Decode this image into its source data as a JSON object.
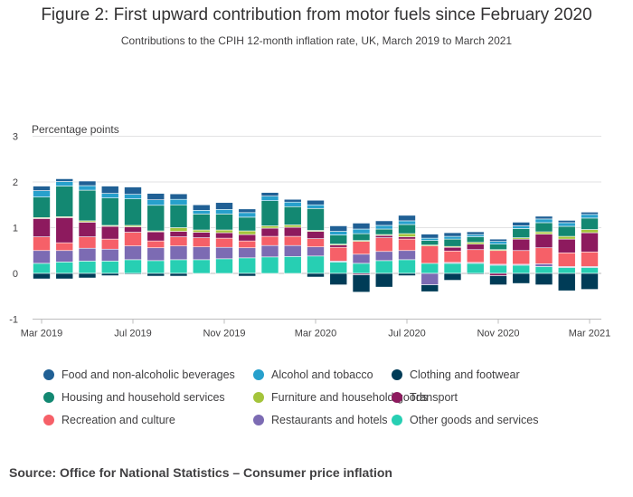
{
  "title": "Figure 2: First upward contribution from motor fuels since February 2020",
  "subtitle": "Contributions to the CPIH 12-month inflation rate, UK, March 2019 to March 2021",
  "source": "Source: Office for National Statistics – Consumer price inflation",
  "chart_data": {
    "type": "bar",
    "stacked": true,
    "ylabel": "Percentage points",
    "ylim": [
      -1,
      3
    ],
    "yticks": [
      -1,
      0,
      1,
      2,
      3
    ],
    "grid": true,
    "legend_position": "bottom",
    "categories": [
      "Mar 2019",
      "Apr 2019",
      "May 2019",
      "Jun 2019",
      "Jul 2019",
      "Aug 2019",
      "Sep 2019",
      "Oct 2019",
      "Nov 2019",
      "Dec 2019",
      "Jan 2020",
      "Feb 2020",
      "Mar 2020",
      "Apr 2020",
      "May 2020",
      "Jun 2020",
      "Jul 2020",
      "Aug 2020",
      "Sep 2020",
      "Oct 2020",
      "Nov 2020",
      "Dec 2020",
      "Jan 2021",
      "Feb 2021",
      "Mar 2021"
    ],
    "xtick_labels": [
      "Mar 2019",
      "Jul 2019",
      "Nov 2019",
      "Mar 2020",
      "Jul 2020",
      "Nov 2020",
      "Mar 2021"
    ],
    "xtick_indices": [
      0,
      4,
      8,
      12,
      16,
      20,
      24
    ],
    "series": [
      {
        "name": "Other goods and services",
        "color": "#27cfb3",
        "values": [
          0.22,
          0.25,
          0.27,
          0.27,
          0.3,
          0.28,
          0.3,
          0.3,
          0.32,
          0.34,
          0.36,
          0.37,
          0.38,
          0.25,
          0.22,
          0.28,
          0.3,
          0.22,
          0.22,
          0.22,
          0.18,
          0.18,
          0.15,
          0.13,
          0.13
        ]
      },
      {
        "name": "Restaurants and hotels",
        "color": "#7c6bb3",
        "values": [
          0.28,
          0.25,
          0.28,
          0.26,
          0.3,
          0.28,
          0.3,
          0.28,
          0.25,
          0.22,
          0.25,
          0.24,
          0.2,
          0.02,
          0.2,
          0.2,
          0.2,
          -0.25,
          0.02,
          0.02,
          0.02,
          0.02,
          0.06,
          0.02,
          0.02
        ]
      },
      {
        "name": "Recreation and culture",
        "color": "#f66068",
        "values": [
          0.3,
          0.17,
          0.25,
          0.22,
          0.3,
          0.15,
          0.2,
          0.2,
          0.2,
          0.15,
          0.2,
          0.2,
          0.18,
          0.3,
          0.28,
          0.3,
          0.25,
          0.38,
          0.25,
          0.28,
          0.3,
          0.3,
          0.35,
          0.3,
          0.32
        ]
      },
      {
        "name": "Transport",
        "color": "#8d1a5e",
        "values": [
          0.4,
          0.55,
          0.32,
          0.28,
          0.12,
          0.2,
          0.12,
          0.12,
          0.12,
          0.14,
          0.18,
          0.2,
          0.16,
          0.05,
          -0.03,
          0.05,
          0.05,
          0.0,
          0.08,
          0.12,
          -0.05,
          0.25,
          0.3,
          0.3,
          0.42
        ]
      },
      {
        "name": "Furniture and household goods",
        "color": "#a4c43b",
        "values": [
          0.02,
          0.02,
          0.03,
          0.02,
          0.03,
          0.02,
          0.08,
          0.05,
          0.06,
          0.08,
          0.05,
          0.05,
          0.02,
          0.02,
          0.02,
          0.02,
          0.07,
          0.02,
          0.02,
          0.04,
          0.02,
          0.03,
          0.05,
          0.06,
          0.07
        ]
      },
      {
        "name": "Housing and household services",
        "color": "#138872",
        "values": [
          0.45,
          0.67,
          0.67,
          0.6,
          0.58,
          0.56,
          0.5,
          0.35,
          0.35,
          0.3,
          0.55,
          0.4,
          0.48,
          0.2,
          0.15,
          0.12,
          0.2,
          0.1,
          0.16,
          0.12,
          0.12,
          0.2,
          0.2,
          0.22,
          0.25
        ]
      },
      {
        "name": "Alcohol and tobacco",
        "color": "#27a0cc",
        "values": [
          0.14,
          0.1,
          0.1,
          0.1,
          0.1,
          0.12,
          0.12,
          0.08,
          0.1,
          0.1,
          0.1,
          0.1,
          0.08,
          0.08,
          0.1,
          0.08,
          0.08,
          0.05,
          0.06,
          0.05,
          0.06,
          0.06,
          0.08,
          0.08,
          0.08
        ]
      },
      {
        "name": "Food and non-alcoholic beverages",
        "color": "#206095",
        "values": [
          0.1,
          0.06,
          0.1,
          0.16,
          0.16,
          0.14,
          0.12,
          0.12,
          0.15,
          0.08,
          0.08,
          0.06,
          0.1,
          0.12,
          0.13,
          0.1,
          0.12,
          0.09,
          0.08,
          0.06,
          0.05,
          0.08,
          0.06,
          0.05,
          0.05
        ]
      },
      {
        "name": "Clothing and footwear",
        "color": "#003c57",
        "values": [
          -0.12,
          -0.12,
          -0.1,
          -0.05,
          -0.02,
          -0.06,
          -0.06,
          0.0,
          0.0,
          -0.06,
          0.0,
          0.0,
          -0.08,
          -0.25,
          -0.38,
          -0.3,
          -0.05,
          -0.15,
          -0.15,
          -0.02,
          -0.2,
          -0.22,
          -0.25,
          -0.38,
          -0.35
        ]
      }
    ]
  },
  "legend": [
    {
      "name": "Food and non-alcoholic beverages",
      "color": "#206095"
    },
    {
      "name": "Alcohol and tobacco",
      "color": "#27a0cc"
    },
    {
      "name": "Clothing and footwear",
      "color": "#003c57"
    },
    {
      "name": "Housing and household services",
      "color": "#138872"
    },
    {
      "name": "Furniture and household goods",
      "color": "#a4c43b"
    },
    {
      "name": "Transport",
      "color": "#8d1a5e"
    },
    {
      "name": "Recreation and culture",
      "color": "#f66068"
    },
    {
      "name": "Restaurants and hotels",
      "color": "#7c6bb3"
    },
    {
      "name": "Other goods and services",
      "color": "#27cfb3"
    }
  ]
}
